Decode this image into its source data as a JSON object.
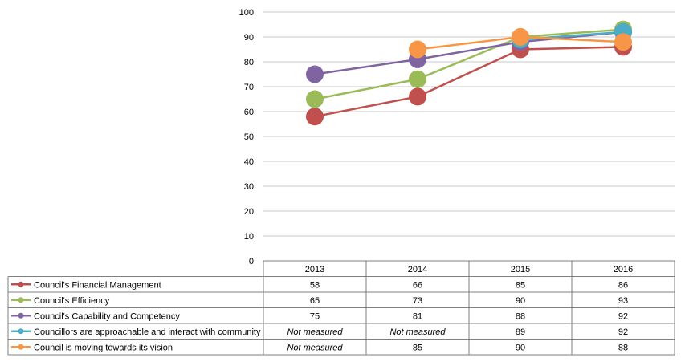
{
  "chart_data": {
    "type": "line",
    "title": "",
    "xlabel": "",
    "ylabel": "",
    "categories": [
      "2013",
      "2014",
      "2015",
      "2016"
    ],
    "ylim": [
      0,
      100
    ],
    "yticks": [
      0,
      10,
      20,
      30,
      40,
      50,
      60,
      70,
      80,
      90,
      100
    ],
    "grid": true,
    "legend": "data-table-left",
    "not_measured_label": "Not measured",
    "series": [
      {
        "name": "Council's Financial Management",
        "color": "#C0504D",
        "values": [
          58,
          66,
          85,
          86
        ],
        "labels": [
          "58",
          "66",
          "85",
          "86"
        ]
      },
      {
        "name": "Council's Efficiency",
        "color": "#9BBB59",
        "values": [
          65,
          73,
          90,
          93
        ],
        "labels": [
          "65",
          "73",
          "90",
          "93"
        ]
      },
      {
        "name": "Council's Capability and Competency",
        "color": "#8064A2",
        "values": [
          75,
          81,
          88,
          92
        ],
        "labels": [
          "75",
          "81",
          "88",
          "92"
        ]
      },
      {
        "name": "Councillors are approachable and interact with community",
        "color": "#4BACC6",
        "values": [
          null,
          null,
          89,
          92
        ],
        "labels": [
          "Not measured",
          "Not measured",
          "89",
          "92"
        ]
      },
      {
        "name": "Council is moving towards its vision",
        "color": "#F79646",
        "values": [
          null,
          85,
          90,
          88
        ],
        "labels": [
          "Not measured",
          "85",
          "90",
          "88"
        ]
      }
    ]
  }
}
